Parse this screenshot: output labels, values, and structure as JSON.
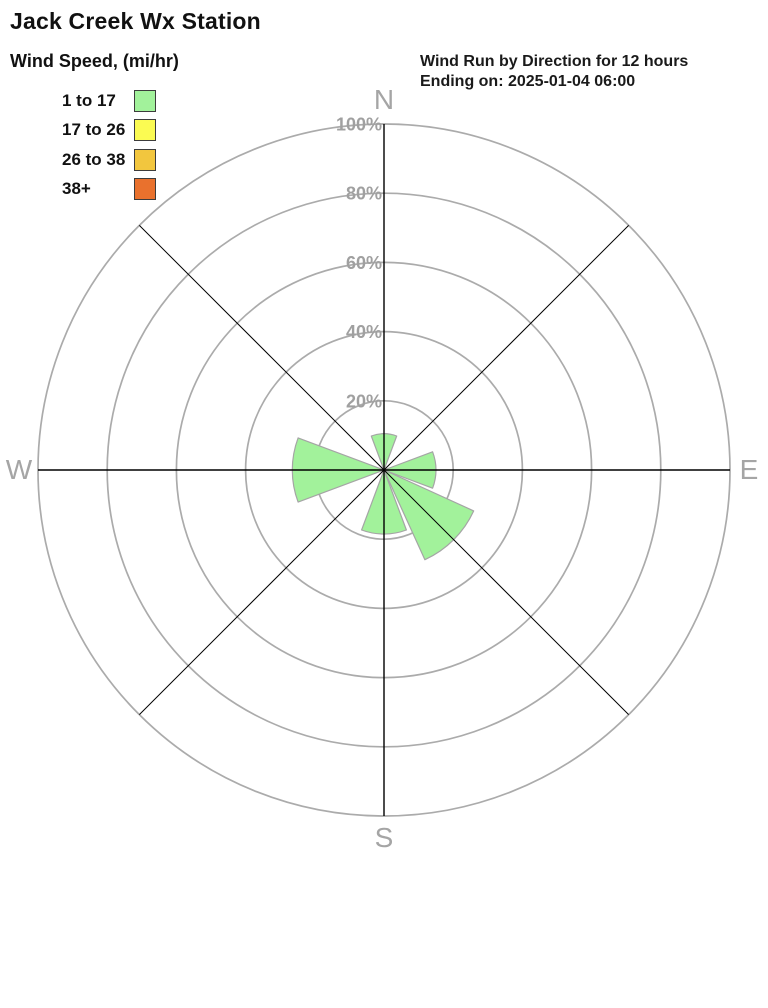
{
  "page": {
    "title": "Jack Creek Wx Station",
    "header_right": {
      "line1": "Wind Run by Direction for 12 hours",
      "line2": "Ending on: 2025-01-04 06:00"
    }
  },
  "legend": {
    "title": "Wind Speed, (mi/hr)",
    "items": [
      {
        "label": "1 to 17",
        "color": "#a2f29b"
      },
      {
        "label": "17 to 26",
        "color": "#fbfb52"
      },
      {
        "label": "26 to 38",
        "color": "#f2c63e"
      },
      {
        "label": "38+",
        "color": "#e9712d"
      }
    ]
  },
  "chart_data": {
    "type": "windrose",
    "title": "Wind Run by Direction for 12 hours",
    "subtitle": "Ending on: 2025-01-04 06:00",
    "units": "percent",
    "directions": [
      "N",
      "NE",
      "E",
      "SE",
      "S",
      "SW",
      "W",
      "NW"
    ],
    "direction_angles_deg": [
      0,
      45,
      90,
      135,
      180,
      225,
      270,
      315
    ],
    "series": [
      {
        "name": "1 to 17",
        "color": "#a2f29b",
        "values": [
          10.5,
          0,
          15,
          28.5,
          18.5,
          0,
          26.5,
          0
        ]
      },
      {
        "name": "17 to 26",
        "color": "#fbfb52",
        "values": [
          0,
          0,
          0,
          0,
          0,
          0,
          0,
          0
        ]
      },
      {
        "name": "26 to 38",
        "color": "#f2c63e",
        "values": [
          0,
          0,
          0,
          0,
          0,
          0,
          0,
          0
        ]
      },
      {
        "name": "38+",
        "color": "#e9712d",
        "values": [
          0,
          0,
          0,
          0,
          0,
          0,
          0,
          0
        ]
      }
    ],
    "ring_ticks_percent": [
      20,
      40,
      60,
      80,
      100
    ],
    "ring_label_suffix": "%",
    "radial_axis_max_percent": 100,
    "compass_labels": [
      "N",
      "E",
      "S",
      "W"
    ],
    "petal_width_deg": 41,
    "grid_on": true,
    "grid_color": "#ababab",
    "petal_stroke_color": "#a5a5a5",
    "axis_line_color": "#000000",
    "ring_label_color": "#a0a0a0",
    "compass_label_color": "#a5a5a5"
  }
}
